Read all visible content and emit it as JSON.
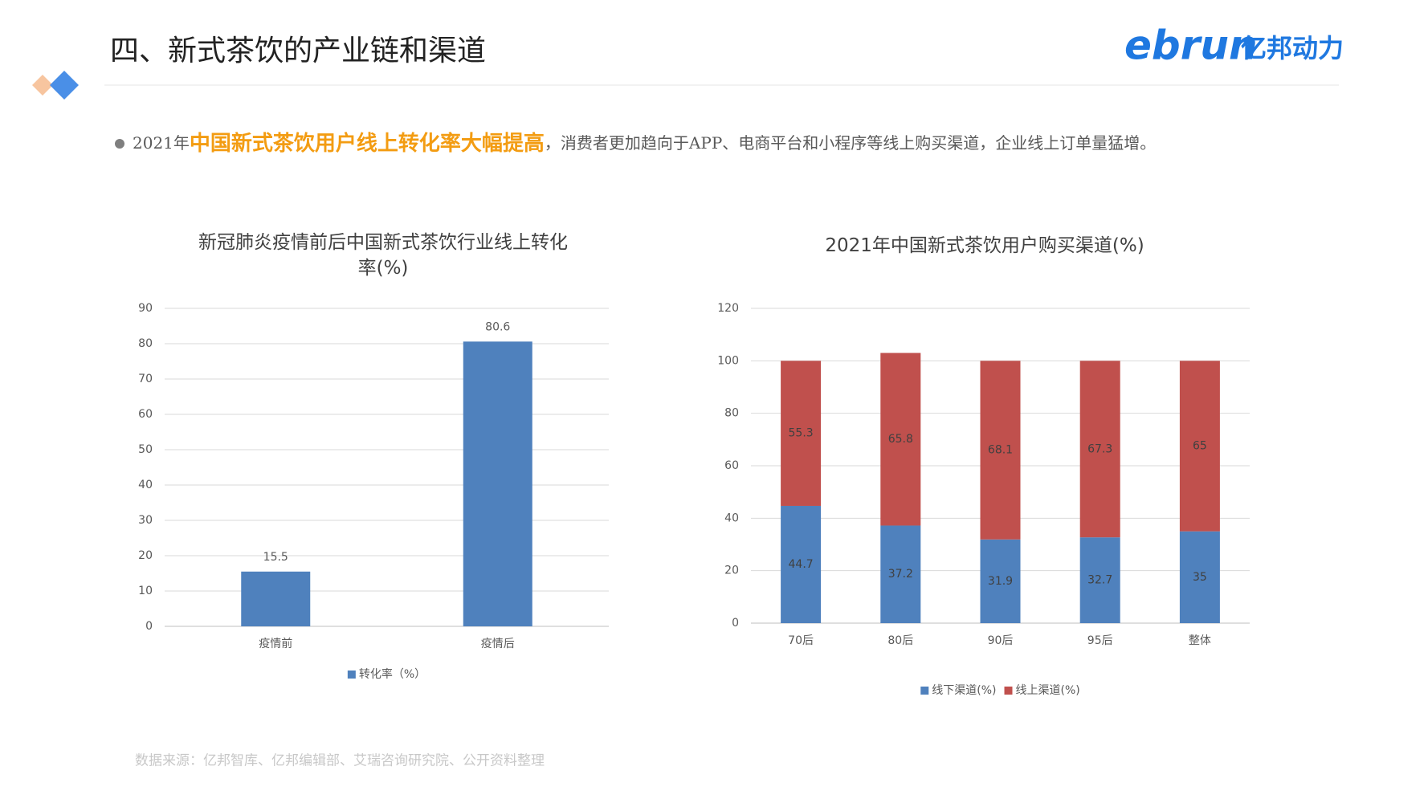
{
  "header": {
    "title": "四、新式茶饮的产业链和渠道",
    "logo_latin": "ebrun",
    "logo_cn": "亿邦动力"
  },
  "bullet": {
    "lead": "2021年",
    "highlight": "中国新式茶饮用户线上转化率大幅提高",
    "rest": "，消费者更加趋向于APP、电商平台和小程序等线上购买渠道，企业线上订单量猛增。"
  },
  "source": "数据来源：亿邦智库、亿邦编辑部、艾瑞咨询研究院、公开资料整理",
  "chart_data": [
    {
      "type": "bar",
      "title": "新冠肺炎疫情前后中国新式茶饮行业线上转化率(%)",
      "categories": [
        "疫情前",
        "疫情后"
      ],
      "series": [
        {
          "name": "转化率（%）",
          "color": "#4f81bd",
          "values": [
            15.5,
            80.6
          ]
        }
      ],
      "ylim": [
        0,
        90
      ],
      "yticks": [
        0,
        10,
        20,
        30,
        40,
        50,
        60,
        70,
        80,
        90
      ],
      "grid": true,
      "data_labels": "above",
      "legend": "bottom"
    },
    {
      "type": "stacked_bar",
      "title": "2021年中国新式茶饮用户购买渠道(%)",
      "categories": [
        "70后",
        "80后",
        "90后",
        "95后",
        "整体"
      ],
      "series": [
        {
          "name": "线下渠道(%)",
          "color": "#4f81bd",
          "values": [
            44.7,
            37.2,
            31.9,
            32.7,
            35
          ]
        },
        {
          "name": "线上渠道(%)",
          "color": "#c0504d",
          "values": [
            55.3,
            65.8,
            68.1,
            67.3,
            65
          ]
        }
      ],
      "ylim": [
        0,
        120
      ],
      "yticks": [
        0,
        20,
        40,
        60,
        80,
        100,
        120
      ],
      "grid": true,
      "data_labels": "inside",
      "legend": "bottom"
    }
  ]
}
